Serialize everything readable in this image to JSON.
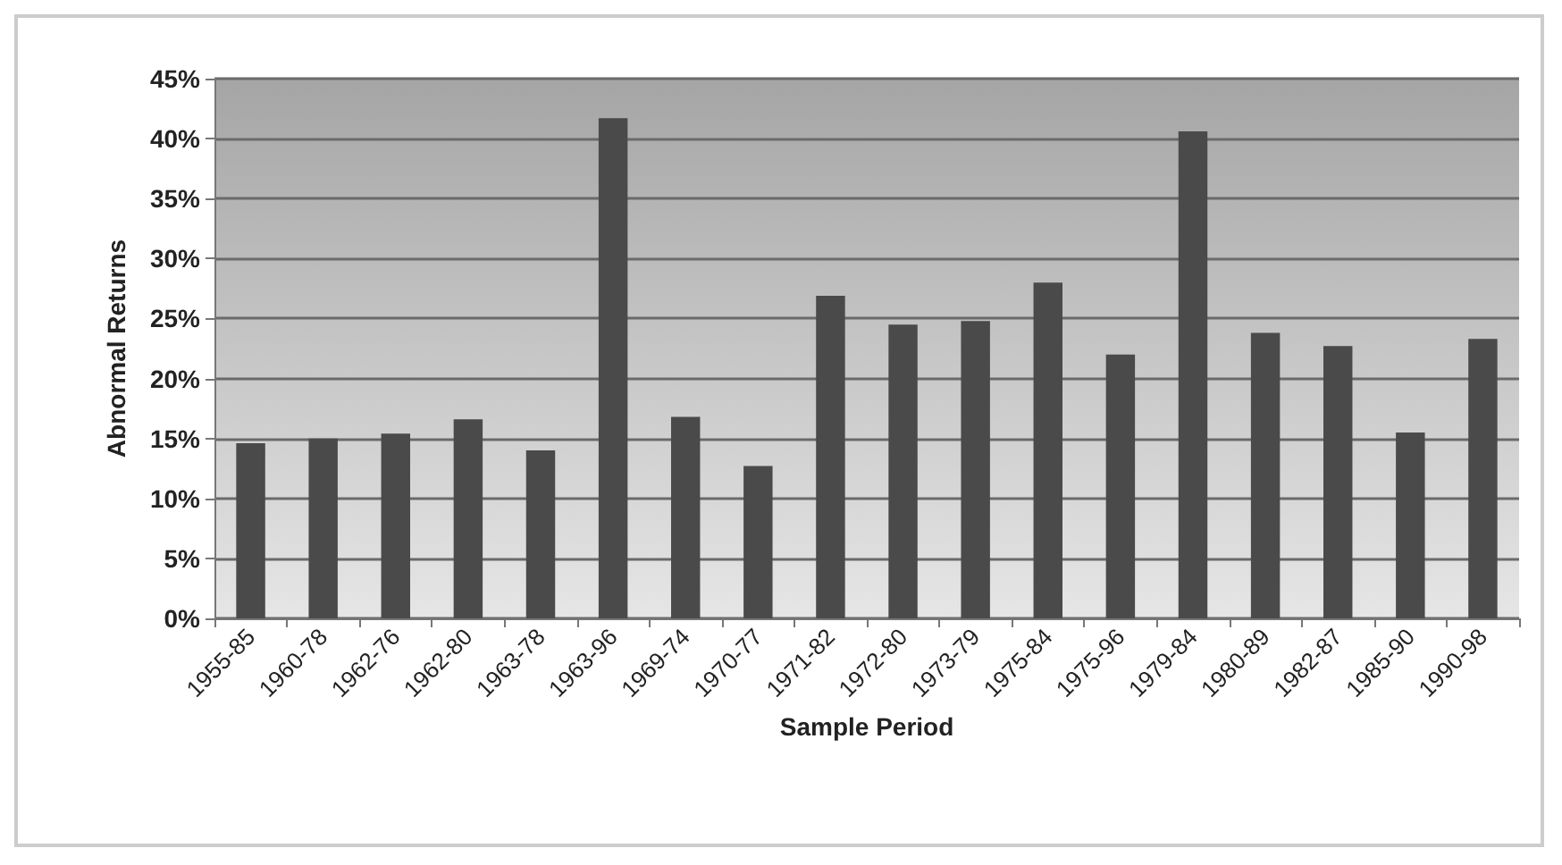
{
  "chart_data": {
    "type": "bar",
    "xlabel": "Sample Period",
    "ylabel": "Abnormal Returns",
    "categories": [
      "1955-85",
      "1960-78",
      "1962-76",
      "1962-80",
      "1963-78",
      "1963-96",
      "1969-74",
      "1970-77",
      "1971-82",
      "1972-80",
      "1973-79",
      "1975-84",
      "1975-96",
      "1979-84",
      "1980-89",
      "1982-87",
      "1985-90",
      "1990-98"
    ],
    "values": [
      14.6,
      15.0,
      15.4,
      16.6,
      14.0,
      41.7,
      16.8,
      12.7,
      26.9,
      24.5,
      24.8,
      28.0,
      22.0,
      40.6,
      23.8,
      22.7,
      15.5,
      23.3
    ],
    "color": "#4a4a4a",
    "ylim": [
      0,
      45
    ],
    "yticks": [
      {
        "value": 0,
        "label": "0%"
      },
      {
        "value": 5,
        "label": "5%"
      },
      {
        "value": 10,
        "label": "10%"
      },
      {
        "value": 15,
        "label": "15%"
      },
      {
        "value": 20,
        "label": "20%"
      },
      {
        "value": 25,
        "label": "25%"
      },
      {
        "value": 30,
        "label": "30%"
      },
      {
        "value": 35,
        "label": "35%"
      },
      {
        "value": 40,
        "label": "40%"
      },
      {
        "value": 45,
        "label": "45%"
      }
    ],
    "grid": "y"
  }
}
